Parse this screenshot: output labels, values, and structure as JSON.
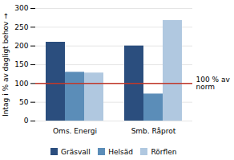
{
  "chart_data": {
    "type": "bar",
    "categories": [
      "Oms. Energi",
      "Smb. Råprot"
    ],
    "series": [
      {
        "name": "Gräsvall",
        "color": "#2B4E7E",
        "values": [
          210,
          200
        ]
      },
      {
        "name": "Helsäd",
        "color": "#5B8DB8",
        "values": [
          130,
          72
        ]
      },
      {
        "name": "Rörflen",
        "color": "#B0C8E0",
        "values": [
          128,
          268
        ]
      }
    ],
    "ylabel": "Intag i % av dagligt behov",
    "ylim": [
      0,
      300
    ],
    "yticks": [
      0,
      50,
      100,
      150,
      200,
      250,
      300
    ],
    "grid": true,
    "legend": "bottom",
    "annotations": [
      {
        "text": "100 % av\nnorm",
        "y": 100,
        "color": "#C0392B"
      }
    ]
  }
}
